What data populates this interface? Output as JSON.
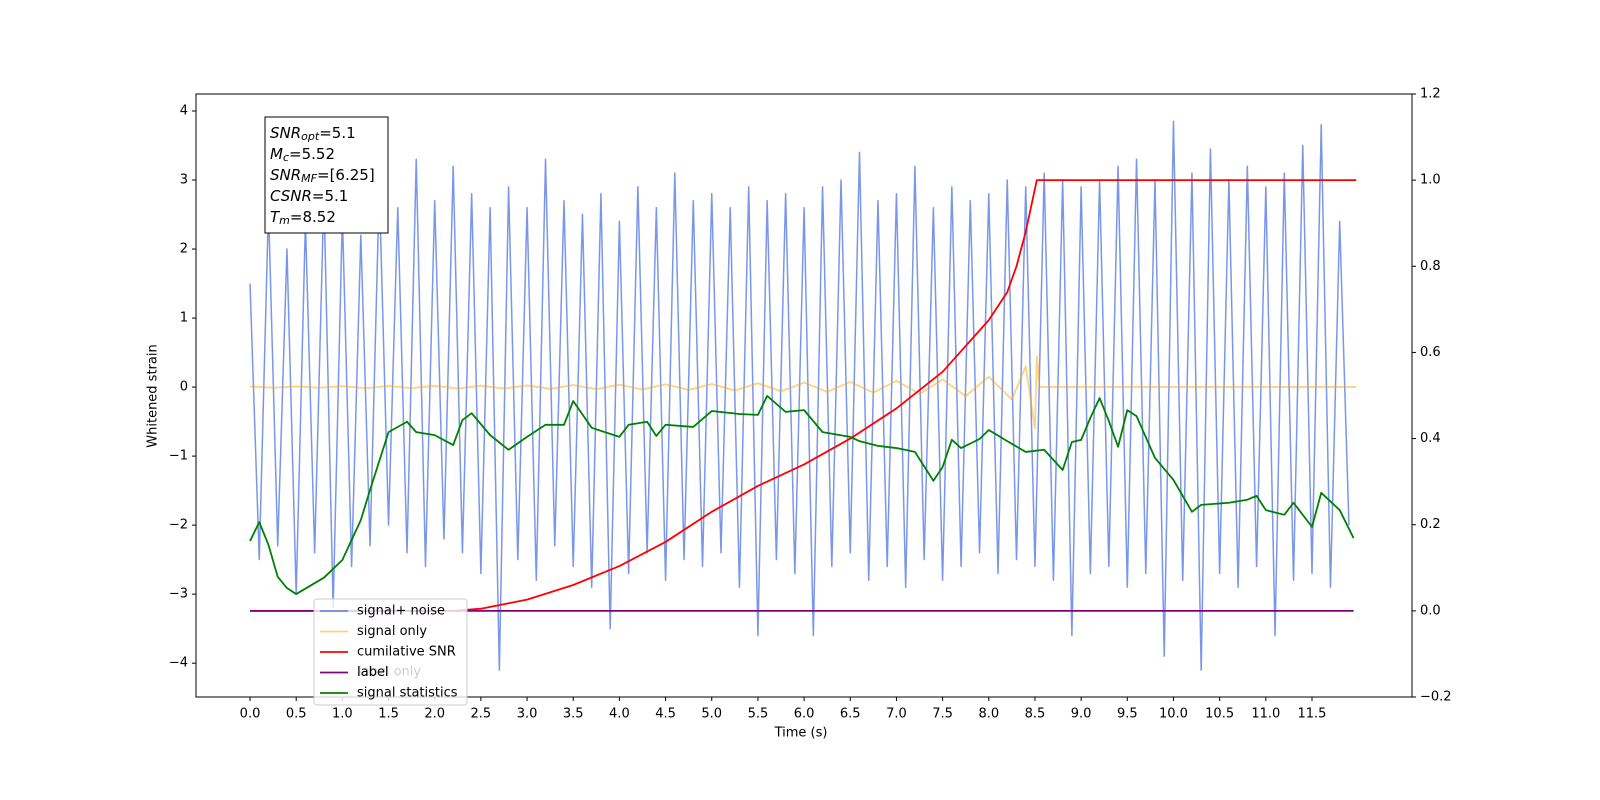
{
  "chart_data": {
    "type": "line",
    "xlabel": "Time (s)",
    "ylabel": "Whitened strain",
    "xlim": [
      -0.585,
      12.583
    ],
    "ylim": [
      -4.49,
      4.246
    ],
    "y2lim": [
      -0.2,
      1.2
    ],
    "xticks": [
      {
        "value": 0,
        "label": "0.0"
      },
      0.5,
      {
        "value": 1,
        "label": "1.0"
      },
      1.5,
      {
        "value": 2,
        "label": "2.0"
      },
      2.5,
      {
        "value": 3,
        "label": "3.0"
      },
      3.5,
      {
        "value": 4,
        "label": "4.0"
      },
      4.5,
      {
        "value": 5,
        "label": "5.0"
      },
      5.5,
      {
        "value": 6,
        "label": "6.0"
      },
      6.5,
      {
        "value": 7,
        "label": "7.0"
      },
      7.5,
      {
        "value": 8,
        "label": "8.0"
      },
      8.5,
      {
        "value": 9,
        "label": "9.0"
      },
      9.5,
      {
        "value": 10,
        "label": "10.0"
      },
      10.5,
      {
        "value": 11,
        "label": "11.0"
      },
      11.5
    ],
    "yticks": [
      {
        "value": -4,
        "label": "−4"
      },
      {
        "value": -3,
        "label": "−3"
      },
      {
        "value": -2,
        "label": "−2"
      },
      {
        "value": -1,
        "label": "−1"
      },
      0,
      1,
      2,
      3,
      4
    ],
    "y2ticks": [
      {
        "value": -0.2,
        "label": "−0.2"
      },
      {
        "value": 0,
        "label": "0.0"
      },
      0.2,
      0.4,
      0.6,
      0.8,
      {
        "value": 1,
        "label": "1.0"
      },
      1.2
    ],
    "grid": false,
    "legend_loc": "lower left",
    "hidden_text": "label only",
    "textbox": [
      {
        "symbol": "SNR",
        "sub": "opt",
        "text": "=5.1"
      },
      {
        "symbol": "M",
        "sub": "c",
        "text": "=5.52"
      },
      {
        "symbol": "SNR",
        "sub": "MF",
        "text": "=[6.25]"
      },
      {
        "symbol": "CSNR",
        "text": "=5.1"
      },
      {
        "symbol": "T",
        "sub": "m",
        "text": "=8.52"
      }
    ],
    "series": [
      {
        "name": "signal+ noise",
        "color": "#4169e1",
        "opacity": 0.7,
        "x": [
          0.0,
          0.1,
          0.2,
          0.3,
          0.4,
          0.5,
          0.6,
          0.7,
          0.8,
          0.9,
          1.0,
          1.1,
          1.2,
          1.3,
          1.4,
          1.5,
          1.6,
          1.7,
          1.8,
          1.9,
          2.0,
          2.1,
          2.2,
          2.3,
          2.4,
          2.5,
          2.6,
          2.7,
          2.8,
          2.9,
          3.0,
          3.1,
          3.2,
          3.3,
          3.4,
          3.5,
          3.6,
          3.7,
          3.8,
          3.9,
          4.0,
          4.1,
          4.2,
          4.3,
          4.4,
          4.5,
          4.6,
          4.7,
          4.8,
          4.9,
          5.0,
          5.1,
          5.2,
          5.3,
          5.4,
          5.5,
          5.6,
          5.7,
          5.8,
          5.9,
          6.0,
          6.1,
          6.2,
          6.3,
          6.4,
          6.5,
          6.6,
          6.7,
          6.8,
          6.9,
          7.0,
          7.1,
          7.2,
          7.3,
          7.4,
          7.5,
          7.6,
          7.7,
          7.8,
          7.9,
          8.0,
          8.1,
          8.2,
          8.3,
          8.4,
          8.5,
          8.6,
          8.7,
          8.8,
          8.9,
          9.0,
          9.1,
          9.2,
          9.3,
          9.4,
          9.5,
          9.6,
          9.7,
          9.8,
          9.9,
          10.0,
          10.1,
          10.2,
          10.3,
          10.4,
          10.5,
          10.6,
          10.7,
          10.8,
          10.9,
          11.0,
          11.1,
          11.2,
          11.3,
          11.4,
          11.5,
          11.6,
          11.7,
          11.8,
          11.9
        ],
        "values": [
          1.5,
          -2.5,
          2.6,
          -2.3,
          2.0,
          -3.0,
          2.4,
          -2.4,
          2.8,
          -3.2,
          2.5,
          -2.6,
          2.2,
          -2.3,
          2.9,
          -2.0,
          2.6,
          -2.4,
          3.3,
          -2.6,
          2.7,
          -2.2,
          3.2,
          -2.4,
          2.8,
          -2.7,
          2.6,
          -4.1,
          2.9,
          -2.5,
          2.6,
          -2.8,
          3.3,
          -2.3,
          2.7,
          -2.6,
          2.5,
          -2.9,
          2.8,
          -3.5,
          2.4,
          -2.7,
          2.9,
          -2.4,
          2.6,
          -2.8,
          3.1,
          -2.5,
          2.7,
          -2.6,
          2.8,
          -2.4,
          2.6,
          -2.9,
          2.9,
          -3.6,
          2.7,
          -2.5,
          2.8,
          -2.7,
          2.6,
          -3.6,
          2.9,
          -2.6,
          3.0,
          -2.4,
          3.4,
          -2.8,
          2.7,
          -2.6,
          2.8,
          -2.9,
          3.2,
          -2.5,
          2.6,
          -2.8,
          2.9,
          -2.6,
          2.7,
          -2.4,
          2.8,
          -2.7,
          3.0,
          -2.5,
          2.9,
          -2.6,
          3.1,
          -2.8,
          3.0,
          -3.6,
          2.9,
          -2.7,
          3.0,
          -2.6,
          3.2,
          -2.9,
          3.3,
          -2.7,
          3.0,
          -3.9,
          3.85,
          -2.8,
          3.1,
          -4.1,
          3.45,
          -2.7,
          3.0,
          -2.9,
          3.2,
          -2.6,
          2.9,
          -3.6,
          3.1,
          -2.8,
          3.5,
          -2.7,
          3.8,
          -2.9,
          2.4,
          -2.0
        ]
      },
      {
        "name": "signal only",
        "color": "#ffa500",
        "opacity": 0.5,
        "x": [
          0,
          0.25,
          0.5,
          0.75,
          1.0,
          1.25,
          1.5,
          1.75,
          2.0,
          2.25,
          2.5,
          2.75,
          3.0,
          3.25,
          3.5,
          3.75,
          4.0,
          4.25,
          4.5,
          4.75,
          5.0,
          5.25,
          5.5,
          5.75,
          6.0,
          6.25,
          6.5,
          6.75,
          7.0,
          7.25,
          7.5,
          7.75,
          8.0,
          8.25,
          8.4,
          8.5,
          8.52,
          8.55,
          11.98
        ],
        "values": [
          0.01,
          -0.01,
          0.01,
          -0.01,
          0.015,
          -0.015,
          0.015,
          -0.015,
          0.02,
          -0.02,
          0.02,
          -0.02,
          0.025,
          -0.025,
          0.03,
          -0.03,
          0.035,
          -0.035,
          0.04,
          -0.04,
          0.045,
          -0.05,
          0.055,
          -0.06,
          0.065,
          -0.07,
          0.075,
          -0.08,
          0.09,
          -0.1,
          0.11,
          -0.13,
          0.15,
          -0.18,
          0.3,
          -0.6,
          0.45,
          0,
          0
        ]
      },
      {
        "name": "cumilative SNR",
        "color": "#ff0000",
        "opacity": 1,
        "axis": "y2",
        "x": [
          0,
          2.2,
          2.5,
          3.0,
          3.5,
          4.0,
          4.5,
          5.0,
          5.5,
          6.0,
          6.5,
          7.0,
          7.5,
          8.0,
          8.2,
          8.3,
          8.4,
          8.52,
          11.98
        ],
        "values": [
          0,
          0,
          0.005,
          0.026,
          0.06,
          0.104,
          0.16,
          0.23,
          0.29,
          0.34,
          0.4,
          0.47,
          0.555,
          0.675,
          0.74,
          0.8,
          0.88,
          1.0,
          1.0
        ]
      },
      {
        "name": "label",
        "color": "#800080",
        "opacity": 1,
        "axis": "y2",
        "x": [
          0,
          11.95
        ],
        "values": [
          0,
          0
        ]
      },
      {
        "name": "signal statistics",
        "color": "#008000",
        "opacity": 1,
        "axis": "y2",
        "x": [
          0,
          0.1,
          0.2,
          0.3,
          0.4,
          0.5,
          0.8,
          1.0,
          1.2,
          1.3,
          1.5,
          1.7,
          1.8,
          2.0,
          2.2,
          2.3,
          2.4,
          2.6,
          2.8,
          3.0,
          3.2,
          3.4,
          3.5,
          3.7,
          4.0,
          4.1,
          4.3,
          4.4,
          4.5,
          4.8,
          5.0,
          5.3,
          5.5,
          5.6,
          5.8,
          6.0,
          6.2,
          6.5,
          6.6,
          6.8,
          7.0,
          7.2,
          7.4,
          7.5,
          7.6,
          7.7,
          7.9,
          8.0,
          8.2,
          8.4,
          8.6,
          8.8,
          8.9,
          9.0,
          9.1,
          9.2,
          9.3,
          9.4,
          9.5,
          9.6,
          9.8,
          10.0,
          10.2,
          10.3,
          10.6,
          10.8,
          10.9,
          11.0,
          11.2,
          11.3,
          11.5,
          11.6,
          11.8,
          11.95
        ],
        "values": [
          0.162,
          0.206,
          0.153,
          0.079,
          0.053,
          0.039,
          0.077,
          0.118,
          0.211,
          0.281,
          0.415,
          0.439,
          0.415,
          0.408,
          0.385,
          0.443,
          0.459,
          0.408,
          0.374,
          0.404,
          0.432,
          0.432,
          0.487,
          0.425,
          0.404,
          0.432,
          0.439,
          0.406,
          0.432,
          0.427,
          0.464,
          0.457,
          0.455,
          0.499,
          0.462,
          0.466,
          0.415,
          0.404,
          0.394,
          0.383,
          0.378,
          0.369,
          0.302,
          0.334,
          0.397,
          0.378,
          0.399,
          0.42,
          0.394,
          0.369,
          0.374,
          0.327,
          0.392,
          0.397,
          0.448,
          0.494,
          0.441,
          0.381,
          0.466,
          0.452,
          0.355,
          0.304,
          0.23,
          0.246,
          0.251,
          0.258,
          0.267,
          0.234,
          0.223,
          0.251,
          0.195,
          0.274,
          0.234,
          0.169
        ]
      }
    ]
  }
}
